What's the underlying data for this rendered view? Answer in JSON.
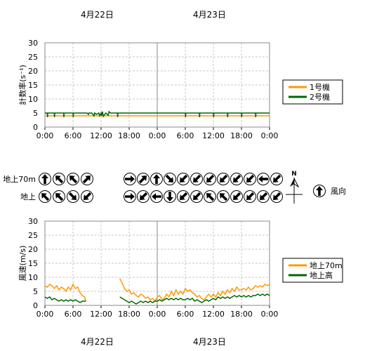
{
  "dates": [
    "4月22日",
    "4月23日"
  ],
  "time_ticks": [
    "0:00",
    "6:00",
    "12:00",
    "18:00",
    "0:00",
    "6:00",
    "12:00",
    "18:00",
    "0:00"
  ],
  "wind_rows": {
    "upper": "地上70m",
    "lower": "地上"
  },
  "compass": {
    "north": "N",
    "legend_label": "風向"
  },
  "chart_data": [
    {
      "type": "line",
      "title": "",
      "xlabel": "",
      "ylabel": "計数率(s⁻¹)",
      "x_unit": "hours from 4月22日 0:00",
      "xlim": [
        0,
        48
      ],
      "ylim": [
        0,
        30
      ],
      "yticks": [
        0,
        5,
        10,
        15,
        20,
        25,
        30
      ],
      "grid": true,
      "legend_position": "right",
      "series": [
        {
          "name": "1号機",
          "color": "#ff9900",
          "x": [
            0,
            6,
            12,
            18,
            24,
            30,
            36,
            42,
            48
          ],
          "y": [
            4,
            4,
            4,
            4,
            4,
            4,
            4,
            4,
            4
          ]
        },
        {
          "name": "2号機",
          "color": "#006600",
          "x": [
            0,
            0.5,
            0.55,
            0.6,
            2,
            2.05,
            2.1,
            4,
            4.05,
            4.1,
            6,
            6.05,
            6.1,
            7,
            9,
            9.3,
            9.4,
            10,
            10.5,
            10.6,
            11,
            11.5,
            11.7,
            12,
            12.1,
            12.3,
            12.5,
            12.8,
            13,
            13.5,
            13.7,
            14,
            15.5,
            15.55,
            15.6,
            18,
            21,
            24,
            30,
            30.05,
            30.1,
            33,
            33.05,
            33.1,
            36,
            36.05,
            36.1,
            39,
            39.05,
            39.1,
            42,
            42.05,
            42.1,
            45,
            45.05,
            45.1,
            48
          ],
          "y": [
            5,
            5,
            3.5,
            5,
            5,
            3.5,
            5,
            5,
            3.5,
            5,
            5,
            3.5,
            5,
            5,
            5,
            4.5,
            5,
            5,
            4,
            5,
            4.5,
            5,
            4,
            5,
            4,
            5.5,
            3.8,
            4.5,
            5,
            4.2,
            5.5,
            5,
            5,
            3.5,
            5,
            5,
            5,
            5,
            5,
            3.5,
            5,
            5,
            3.5,
            5,
            5,
            3.5,
            5,
            5,
            3.5,
            5,
            5,
            3.5,
            5,
            5,
            3.5,
            5,
            5
          ]
        }
      ]
    },
    {
      "type": "line",
      "title": "",
      "xlabel": "",
      "ylabel": "風速(m/s)",
      "x_unit": "hours from 4月22日 0:00",
      "xlim": [
        0,
        48
      ],
      "ylim": [
        0,
        30
      ],
      "yticks": [
        0,
        5,
        10,
        15,
        20,
        25,
        30
      ],
      "grid": true,
      "legend_position": "right",
      "series": [
        {
          "name": "地上70m",
          "color": "#ff9900",
          "segments": [
            {
              "x": [
                0,
                0.5,
                1,
                1.5,
                2,
                2.5,
                3,
                3.5,
                4,
                4.5,
                5,
                5.5,
                6,
                6.5,
                7,
                7.5,
                8,
                8.5,
                8.75
              ],
              "y": [
                7,
                6.5,
                7.5,
                7,
                6,
                7,
                5.5,
                6.5,
                6,
                5,
                6.5,
                5.5,
                7.5,
                6,
                6.5,
                4.5,
                3.5,
                3,
                1.5
              ]
            },
            {
              "x": [
                16,
                16.5,
                17,
                17.5,
                18,
                18.5,
                19,
                19.5,
                20,
                20.5,
                21,
                21.5,
                22,
                22.5,
                23,
                23.5,
                24,
                24.5,
                25,
                25.5,
                26,
                26.5,
                27,
                27.5,
                28,
                28.5,
                29,
                29.5,
                30,
                30.5,
                31,
                31.5,
                32,
                32.5,
                33,
                33.5,
                34,
                34.5,
                35,
                35.5,
                36,
                36.5,
                37,
                37.5,
                38,
                38.5,
                39,
                39.5,
                40,
                40.5,
                41,
                41.5,
                42,
                42.5,
                43,
                43.5,
                44,
                44.5,
                45,
                45.5,
                46,
                46.5,
                47,
                47.5,
                48
              ],
              "y": [
                9.5,
                8,
                6,
                5,
                5.5,
                4,
                4.5,
                3.5,
                3,
                4,
                3.5,
                2.5,
                3,
                2,
                2.5,
                1.5,
                3,
                3.5,
                2,
                2.5,
                4,
                3,
                5,
                3.5,
                5.5,
                4,
                5,
                4,
                6,
                5,
                5.5,
                4.5,
                4,
                3,
                3.5,
                2.5,
                2,
                3,
                4,
                3,
                4,
                3,
                4.5,
                3.5,
                5,
                4,
                5.5,
                4.5,
                6,
                5,
                6.5,
                5.5,
                5.5,
                6,
                5.5,
                6.5,
                5.5,
                6,
                7,
                6.5,
                7,
                6.5,
                7.5,
                7,
                7.5
              ]
            }
          ]
        },
        {
          "name": "地上高",
          "color": "#006600",
          "segments": [
            {
              "x": [
                0,
                0.5,
                1,
                1.5,
                2,
                2.5,
                3,
                3.5,
                4,
                4.5,
                5,
                5.5,
                6,
                6.5,
                7,
                7.5,
                8,
                8.5,
                8.75
              ],
              "y": [
                3,
                2.5,
                3,
                2,
                2.5,
                2,
                1.5,
                2,
                1.5,
                2,
                1.5,
                2,
                1.5,
                2,
                1.5,
                1,
                1.5,
                1.5,
                1.5
              ]
            },
            {
              "x": [
                16,
                16.5,
                17,
                17.5,
                18,
                18.5,
                19,
                19.5,
                20,
                20.5,
                21,
                21.5,
                22,
                22.5,
                23,
                23.5,
                24,
                24.5,
                25,
                25.5,
                26,
                26.5,
                27,
                27.5,
                28,
                28.5,
                29,
                29.5,
                30,
                30.5,
                31,
                31.5,
                32,
                32.5,
                33,
                33.5,
                34,
                34.5,
                35,
                35.5,
                36,
                36.5,
                37,
                37.5,
                38,
                38.5,
                39,
                39.5,
                40,
                40.5,
                41,
                41.5,
                42,
                42.5,
                43,
                43.5,
                44,
                44.5,
                45,
                45.5,
                46,
                46.5,
                47,
                47.5,
                48
              ],
              "y": [
                3,
                2.5,
                2,
                1.5,
                1,
                1.5,
                1,
                0.5,
                1,
                1.5,
                1,
                1.5,
                1,
                1.5,
                1,
                1.5,
                1.5,
                2,
                1.5,
                2,
                2.5,
                2,
                2.5,
                2,
                2.5,
                2,
                2.5,
                2,
                2,
                2.5,
                2,
                2.5,
                1.5,
                2,
                1.5,
                1,
                1.5,
                2,
                1.5,
                2,
                2.5,
                2,
                3,
                2.5,
                3,
                2.5,
                3,
                2.5,
                3,
                3.5,
                3,
                3.5,
                3,
                3.5,
                3,
                3.5,
                3,
                3.5,
                3.5,
                4,
                3.5,
                4,
                3.5,
                4,
                3.5
              ]
            }
          ]
        }
      ]
    }
  ],
  "wind_directions": {
    "upper": {
      "day1": [
        "N",
        "NW",
        "NW",
        "NE"
      ],
      "day2": [
        "E",
        "NE",
        "N",
        "SE",
        "SW",
        "SW",
        "SW",
        "SW",
        "SW",
        "SW",
        "W",
        "SW"
      ]
    },
    "lower": {
      "day1": [
        "NW",
        "NW",
        "SE",
        "SW"
      ],
      "day2": [
        "E",
        "SW",
        "W",
        "S",
        "SW",
        "SW",
        "NW",
        "NW",
        "SW",
        "SW",
        "SW",
        "SW"
      ]
    }
  }
}
